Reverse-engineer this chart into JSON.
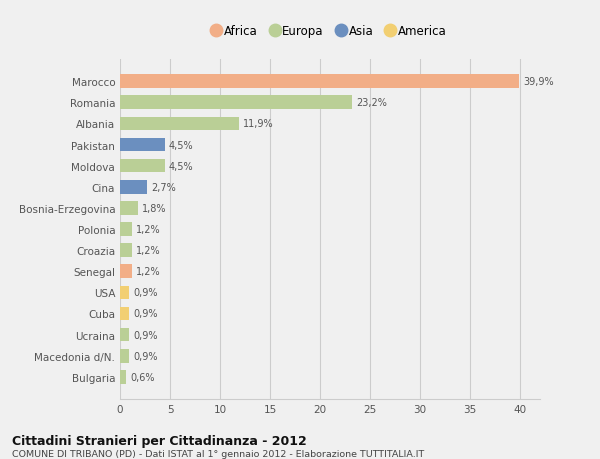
{
  "categories": [
    "Marocco",
    "Romania",
    "Albania",
    "Pakistan",
    "Moldova",
    "Cina",
    "Bosnia-Erzegovina",
    "Polonia",
    "Croazia",
    "Senegal",
    "USA",
    "Cuba",
    "Ucraina",
    "Macedonia d/N.",
    "Bulgaria"
  ],
  "values": [
    39.9,
    23.2,
    11.9,
    4.5,
    4.5,
    2.7,
    1.8,
    1.2,
    1.2,
    1.2,
    0.9,
    0.9,
    0.9,
    0.9,
    0.6
  ],
  "labels": [
    "39,9%",
    "23,2%",
    "11,9%",
    "4,5%",
    "4,5%",
    "2,7%",
    "1,8%",
    "1,2%",
    "1,2%",
    "1,2%",
    "0,9%",
    "0,9%",
    "0,9%",
    "0,9%",
    "0,6%"
  ],
  "continents": [
    "Africa",
    "Europa",
    "Europa",
    "Asia",
    "Europa",
    "Asia",
    "Europa",
    "Europa",
    "Europa",
    "Africa",
    "America",
    "America",
    "Europa",
    "Europa",
    "Europa"
  ],
  "colors": {
    "Africa": "#F2AE87",
    "Europa": "#BACF96",
    "Asia": "#6B8FBF",
    "America": "#F2CF72"
  },
  "legend_order": [
    "Africa",
    "Europa",
    "Asia",
    "America"
  ],
  "legend_colors": [
    "#F2AE87",
    "#BACF96",
    "#6B8FBF",
    "#F2CF72"
  ],
  "title_bold": "Cittadini Stranieri per Cittadinanza - 2012",
  "subtitle": "COMUNE DI TRIBANO (PD) - Dati ISTAT al 1° gennaio 2012 - Elaborazione TUTTITALIA.IT",
  "xlim": [
    0,
    42
  ],
  "xticks": [
    0,
    5,
    10,
    15,
    20,
    25,
    30,
    35,
    40
  ],
  "bg_color": "#f0f0f0",
  "plot_bg": "#f0f0f0",
  "grid_color": "#cccccc"
}
